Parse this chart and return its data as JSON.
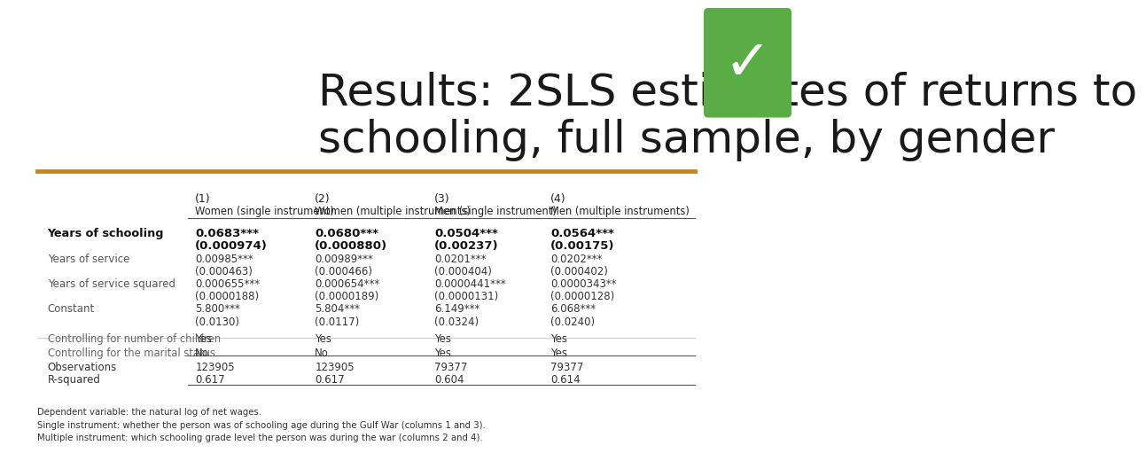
{
  "title": "Results: 2SLS estimates of returns to\nschooling, full sample, by gender",
  "title_fontsize": 36,
  "bg_color": "#ffffff",
  "orange_line_color": "#C8851C",
  "checkmark_bg": "#5aac44",
  "col_headers_num": [
    "(1)",
    "(2)",
    "(3)",
    "(4)"
  ],
  "col_headers_label": [
    "Women (single instrument)",
    "Women (multiple instruments)",
    "Men (single instrument)",
    "Men (multiple instruments)"
  ],
  "row_labels": [
    "Years of schooling",
    "",
    "Years of service",
    "",
    "Years of service squared",
    "",
    "Constant",
    "",
    "Controlling for number of children",
    "Controlling for the marital status",
    "Observations",
    "R-squared"
  ],
  "rows": [
    [
      "0.0683***",
      "0.0680***",
      "0.0504***",
      "0.0564***"
    ],
    [
      "(0.000974)",
      "(0.000880)",
      "(0.00237)",
      "(0.00175)"
    ],
    [
      "0.00985***",
      "0.00989***",
      "0.0201***",
      "0.0202***"
    ],
    [
      "(0.000463)",
      "(0.000466)",
      "(0.000404)",
      "(0.000402)"
    ],
    [
      "0.000655***",
      "0.000654***",
      "0.0000441***",
      "0.0000343**"
    ],
    [
      "(0.0000188)",
      "(0.0000189)",
      "(0.0000131)",
      "(0.0000128)"
    ],
    [
      "5.800***",
      "5.804***",
      "6.149***",
      "6.068***"
    ],
    [
      "(0.0130)",
      "(0.0117)",
      "(0.0324)",
      "(0.0240)"
    ],
    [
      "Yes",
      "Yes",
      "Yes",
      "Yes"
    ],
    [
      "No",
      "No",
      "Yes",
      "Yes"
    ],
    [
      "123905",
      "123905",
      "79377",
      "79377"
    ],
    [
      "0.617",
      "0.617",
      "0.604",
      "0.614"
    ]
  ],
  "footnotes": [
    "Dependent variable: the natural log of net wages.",
    "Single instrument: whether the person was of schooling age during the Gulf War (columns 1 and 3).",
    "Multiple instrument: which schooling grade level the person was during the war (columns 2 and 4)."
  ]
}
